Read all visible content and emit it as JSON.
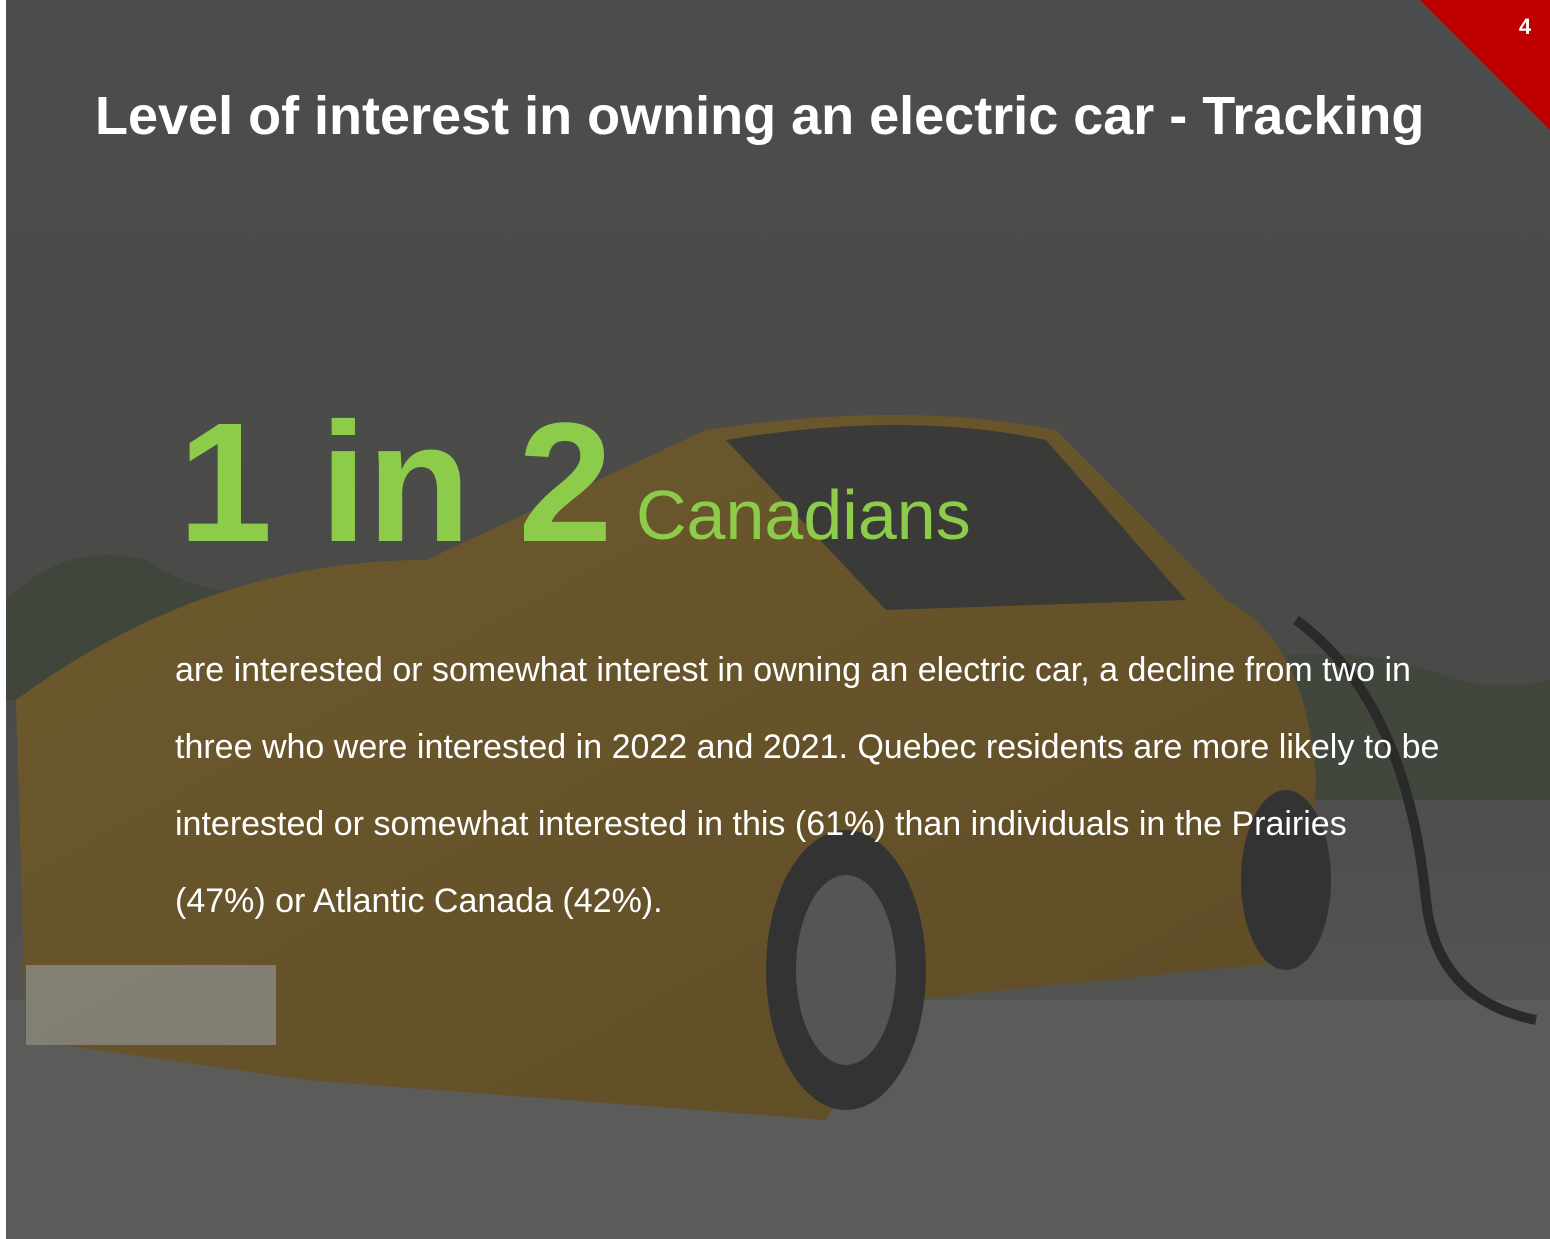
{
  "slide": {
    "page_number": "4",
    "title": "Level of interest in owning an electric car - Tracking",
    "headline": {
      "stat": "1 in 2",
      "unit": "Canadians"
    },
    "body": "are interested or somewhat interest in owning an electric car, a decline from two in three who were interested in 2022 and 2021. Quebec residents are more likely to be interested or somewhat interested in this (61%) than individuals in the Prairies (47%) or Atlantic Canada (42%)."
  }
}
